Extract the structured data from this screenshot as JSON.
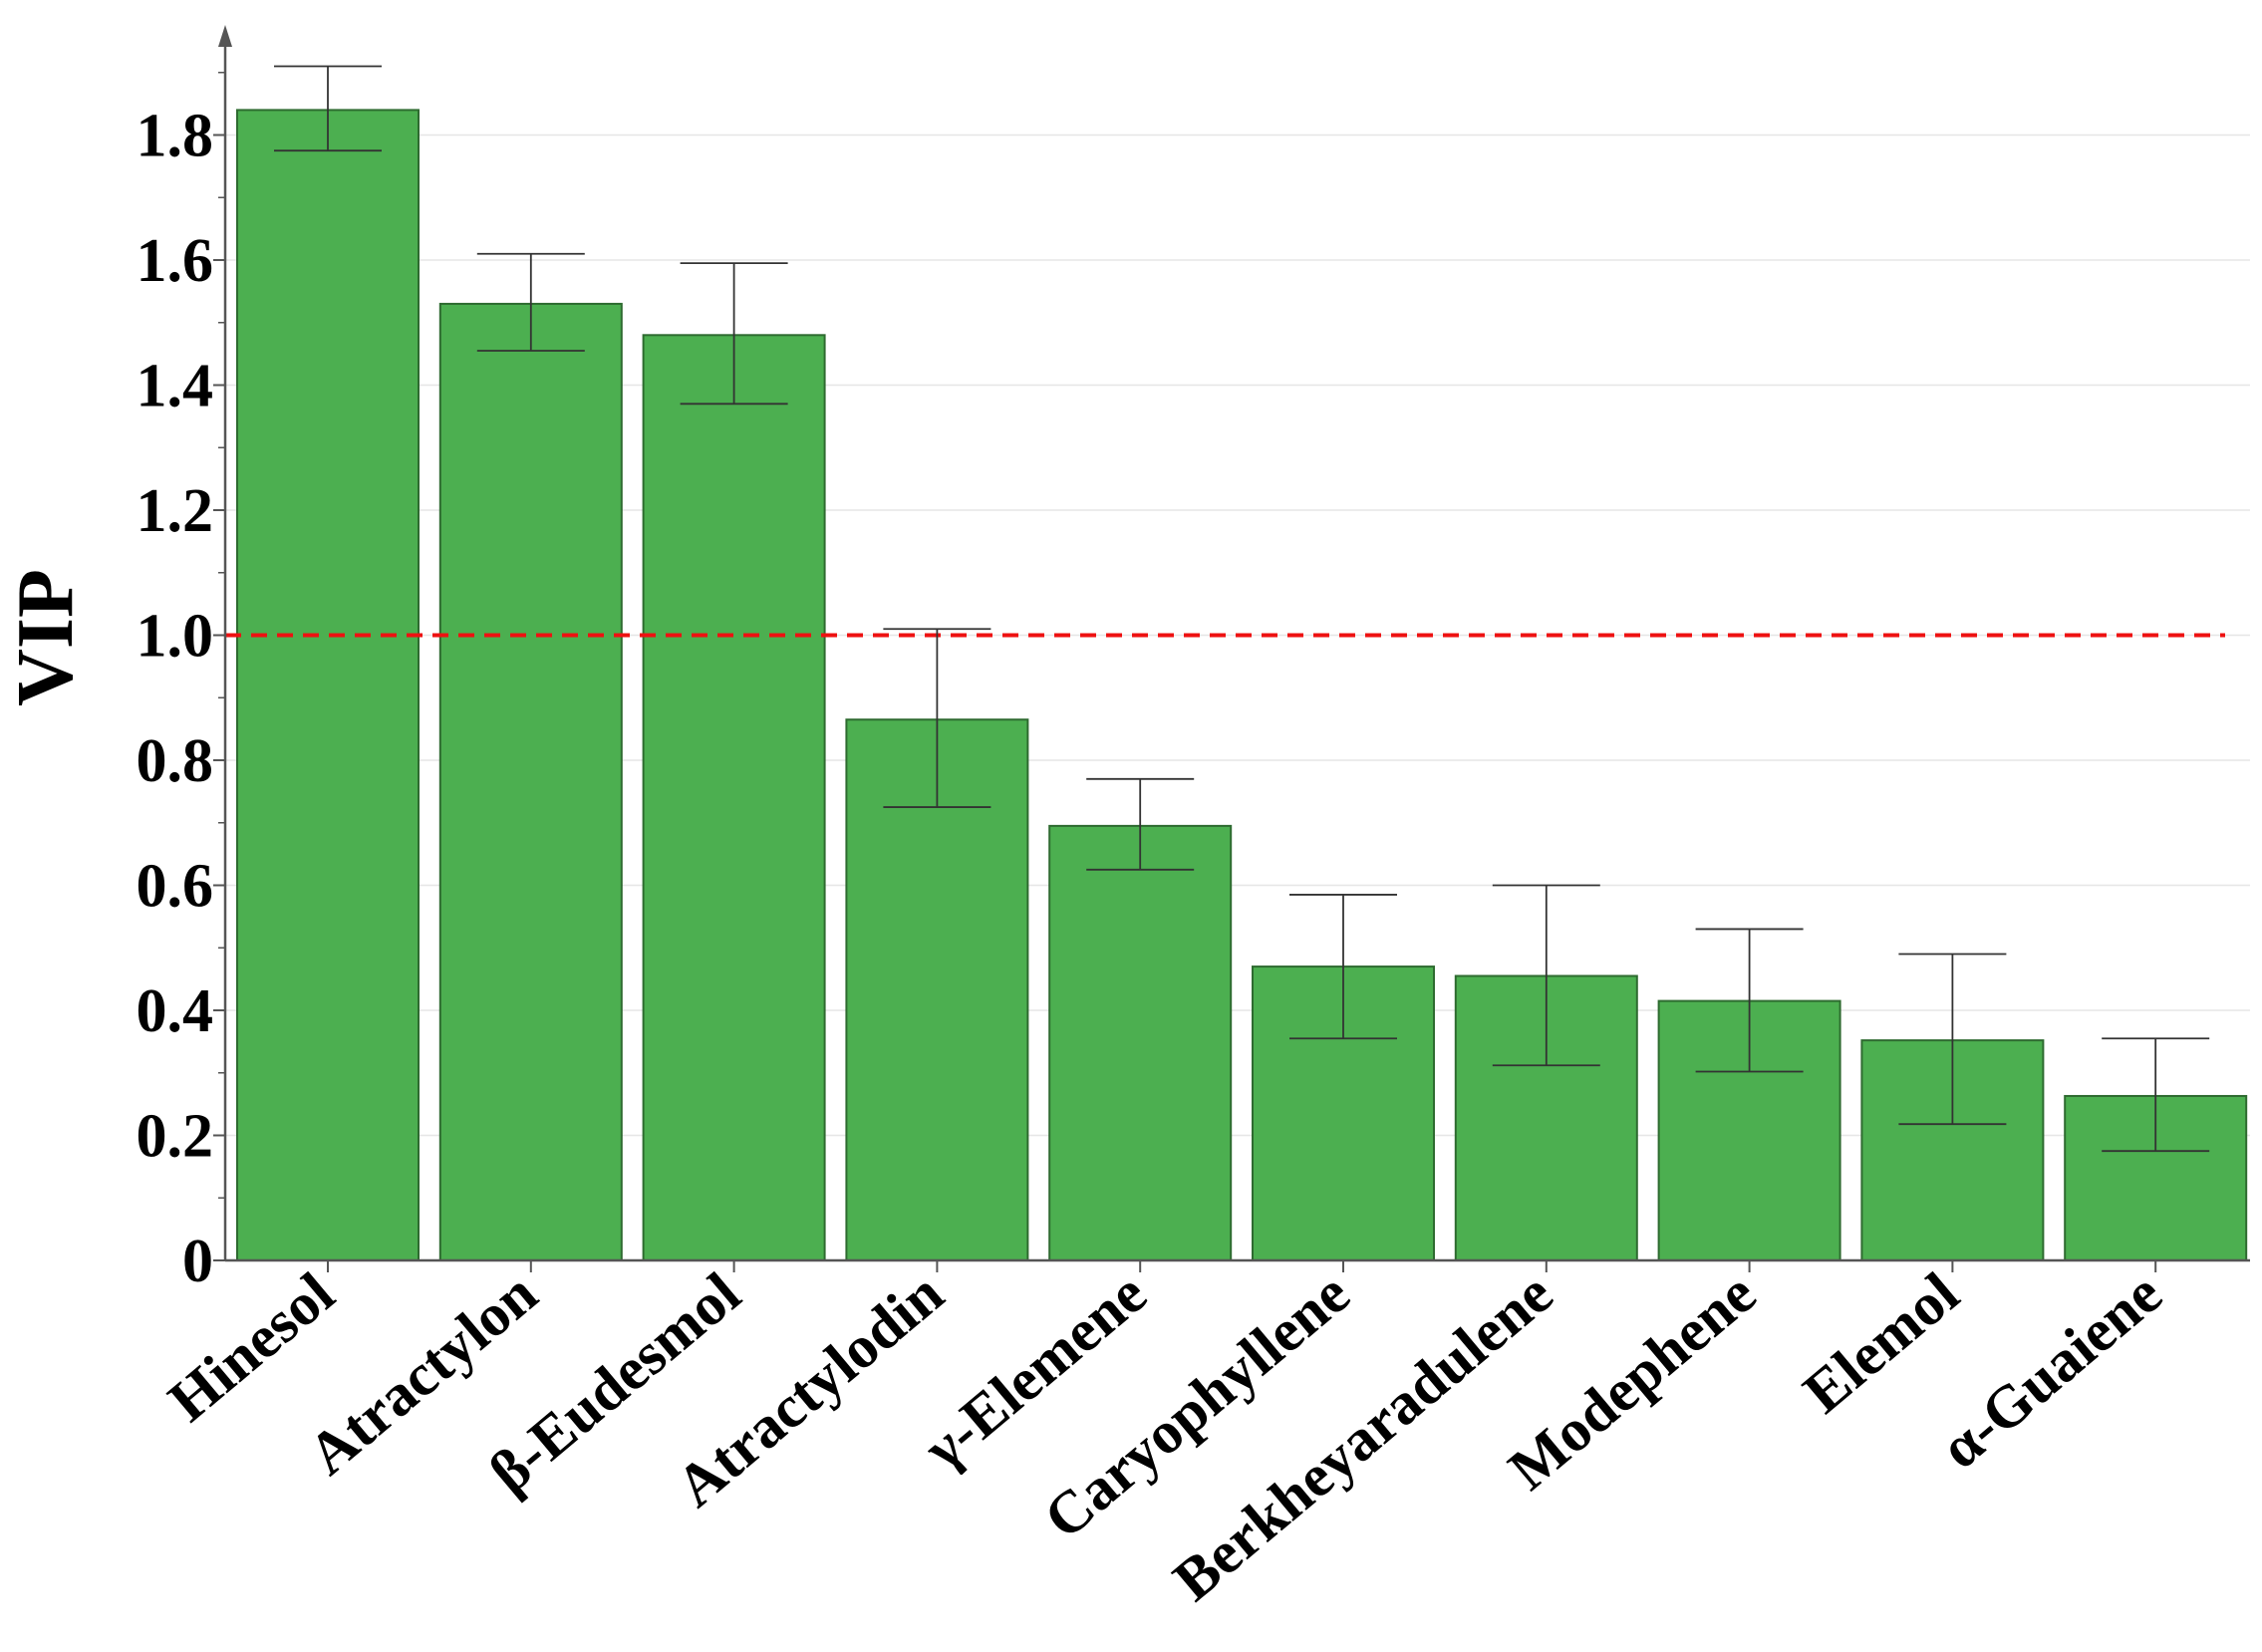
{
  "chart_data": {
    "type": "bar",
    "title": "",
    "xlabel": "",
    "ylabel": "VIP",
    "ylim": [
      0,
      1.98
    ],
    "yticks": [
      0,
      0.2,
      0.4,
      0.6,
      0.8,
      1.0,
      1.2,
      1.4,
      1.6,
      1.8
    ],
    "ytick_labels": [
      "0",
      "0.2",
      "0.4",
      "0.6",
      "0.8",
      "1.0",
      "1.2",
      "1.4",
      "1.6",
      "1.8"
    ],
    "grid": true,
    "categories": [
      "Hinesol",
      "Atractylon",
      "β-Eudesmol",
      "Atractylodin",
      "γ-Elemene",
      "Caryophyllene",
      "Berkheyaradulene",
      "Modephene",
      "Elemol",
      "α-Guaiene"
    ],
    "values": [
      1.84,
      1.53,
      1.48,
      0.865,
      0.695,
      0.47,
      0.455,
      0.415,
      0.352,
      0.263
    ],
    "error_low": [
      1.775,
      1.455,
      1.37,
      0.725,
      0.625,
      0.355,
      0.312,
      0.302,
      0.218,
      0.175
    ],
    "error_high": [
      1.91,
      1.61,
      1.595,
      1.01,
      0.77,
      0.585,
      0.6,
      0.53,
      0.49,
      0.355
    ],
    "reference_line": 1.0,
    "colors": {
      "bar_fill": "#4caf50",
      "bar_stroke": "#2e6b30",
      "reference_line": "#ee1111",
      "grid": "#e6e6e6",
      "axis": "#555555"
    }
  }
}
